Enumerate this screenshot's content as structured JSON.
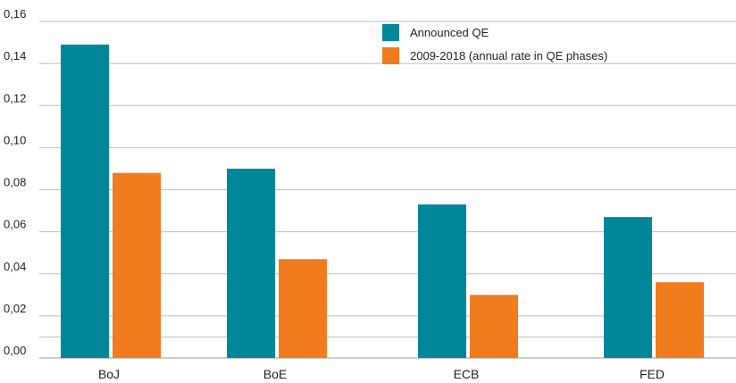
{
  "chart_data": {
    "type": "bar",
    "categories": [
      "BoJ",
      "BoE",
      "ECB",
      "FED"
    ],
    "series": [
      {
        "name": "Announced QE",
        "color": "#00879a",
        "values": [
          0.149,
          0.09,
          0.073,
          0.067
        ]
      },
      {
        "name": "2009-2018 (annual rate in QE phases)",
        "color": "#f07c1e",
        "values": [
          0.088,
          0.047,
          0.03,
          0.036
        ]
      }
    ],
    "y_ticks": [
      "0,00",
      "0,02",
      "0,04",
      "0,06",
      "0,08",
      "0,10",
      "0,12",
      "0,14",
      "0,16"
    ],
    "ylim": [
      0,
      0.16
    ],
    "grid": true,
    "legend_position": "top-right",
    "title": "",
    "xlabel": "",
    "ylabel": ""
  }
}
